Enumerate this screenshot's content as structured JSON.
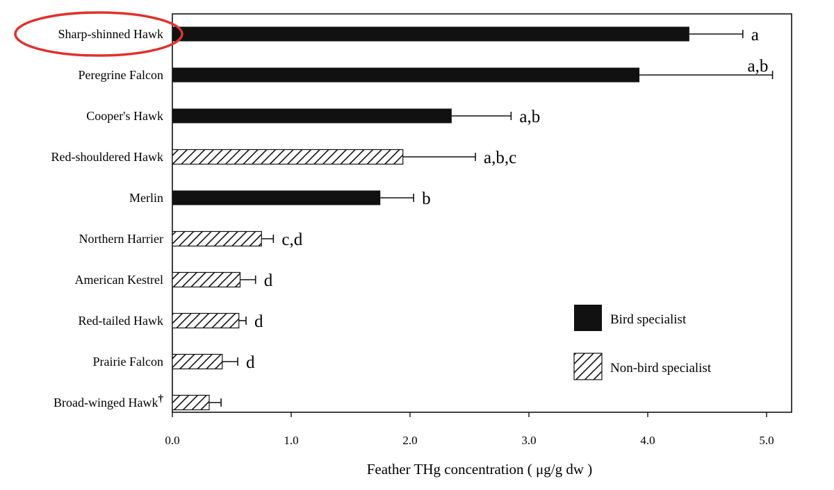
{
  "chart_data": {
    "type": "bar",
    "orientation": "horizontal",
    "xlabel": "Feather THg concentration ( μg/g dw )",
    "ylabel": "",
    "xlim": [
      0,
      5.2
    ],
    "xticks": [
      "0.0",
      "1.0",
      "2.0",
      "3.0",
      "4.0",
      "5.0"
    ],
    "categories": [
      "Sharp-shinned Hawk",
      "Peregrine Falcon",
      "Cooper's Hawk",
      "Red-shouldered Hawk",
      "Merlin",
      "Northern Harrier",
      "American Kestrel",
      "Red-tailed Hawk",
      "Prairie Falcon",
      "Broad-winged Hawk"
    ],
    "category_marks": [
      "",
      "",
      "",
      "",
      "",
      "",
      "",
      "",
      "",
      "†"
    ],
    "values": [
      4.35,
      3.93,
      2.35,
      1.94,
      1.75,
      0.75,
      0.57,
      0.56,
      0.42,
      0.31
    ],
    "error": [
      0.45,
      1.12,
      0.5,
      0.61,
      0.28,
      0.1,
      0.13,
      0.06,
      0.13,
      0.1
    ],
    "group": [
      "Bird specialist",
      "Bird specialist",
      "Bird specialist",
      "Non-bird specialist",
      "Bird specialist",
      "Non-bird specialist",
      "Non-bird specialist",
      "Non-bird specialist",
      "Non-bird specialist",
      "Non-bird specialist"
    ],
    "significance": [
      "a",
      "a,b",
      "a,b",
      "a,b,c",
      "b",
      "c,d",
      "d",
      "d",
      "d",
      ""
    ],
    "legend": {
      "position": "lower-right",
      "items": [
        {
          "label": "Bird specialist",
          "style": "solid"
        },
        {
          "label": "Non-bird specialist",
          "style": "hatched"
        }
      ]
    },
    "highlight": {
      "category": "Sharp-shinned Hawk",
      "shape": "ellipse",
      "color": "#e0322b"
    },
    "grid": false
  }
}
